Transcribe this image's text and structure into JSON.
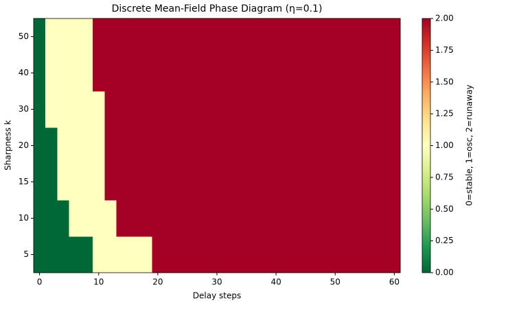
{
  "chart_data": {
    "type": "heatmap",
    "title": "Discrete Mean-Field Phase Diagram (η=0.1)",
    "x_label": "Delay steps",
    "y_label": "Sharpness k",
    "x": [
      0,
      2,
      4,
      6,
      8,
      10,
      12,
      14,
      16,
      18,
      20,
      22,
      24,
      26,
      28,
      30,
      32,
      34,
      36,
      38,
      40,
      42,
      44,
      46,
      48,
      50,
      52,
      54,
      56,
      58,
      60
    ],
    "categories": [
      "5",
      "10",
      "15",
      "20",
      "30",
      "40",
      "50"
    ],
    "z": [
      [
        0,
        0,
        0,
        0,
        0,
        1,
        1,
        1,
        1,
        1,
        2,
        2,
        2,
        2,
        2,
        2,
        2,
        2,
        2,
        2,
        2,
        2,
        2,
        2,
        2,
        2,
        2,
        2,
        2,
        2,
        2
      ],
      [
        0,
        0,
        0,
        1,
        1,
        1,
        1,
        2,
        2,
        2,
        2,
        2,
        2,
        2,
        2,
        2,
        2,
        2,
        2,
        2,
        2,
        2,
        2,
        2,
        2,
        2,
        2,
        2,
        2,
        2,
        2
      ],
      [
        0,
        0,
        1,
        1,
        1,
        1,
        2,
        2,
        2,
        2,
        2,
        2,
        2,
        2,
        2,
        2,
        2,
        2,
        2,
        2,
        2,
        2,
        2,
        2,
        2,
        2,
        2,
        2,
        2,
        2,
        2
      ],
      [
        0,
        0,
        1,
        1,
        1,
        1,
        2,
        2,
        2,
        2,
        2,
        2,
        2,
        2,
        2,
        2,
        2,
        2,
        2,
        2,
        2,
        2,
        2,
        2,
        2,
        2,
        2,
        2,
        2,
        2,
        2
      ],
      [
        0,
        1,
        1,
        1,
        1,
        1,
        2,
        2,
        2,
        2,
        2,
        2,
        2,
        2,
        2,
        2,
        2,
        2,
        2,
        2,
        2,
        2,
        2,
        2,
        2,
        2,
        2,
        2,
        2,
        2,
        2
      ],
      [
        0,
        1,
        1,
        1,
        1,
        2,
        2,
        2,
        2,
        2,
        2,
        2,
        2,
        2,
        2,
        2,
        2,
        2,
        2,
        2,
        2,
        2,
        2,
        2,
        2,
        2,
        2,
        2,
        2,
        2,
        2
      ],
      [
        0,
        1,
        1,
        1,
        1,
        2,
        2,
        2,
        2,
        2,
        2,
        2,
        2,
        2,
        2,
        2,
        2,
        2,
        2,
        2,
        2,
        2,
        2,
        2,
        2,
        2,
        2,
        2,
        2,
        2,
        2
      ]
    ],
    "xlim": [
      -1,
      61
    ],
    "xticks": [
      0,
      10,
      20,
      30,
      40,
      50,
      60
    ],
    "colormap": [
      "#006837",
      "#1a9850",
      "#66bd63",
      "#a6d96a",
      "#d9ef8b",
      "#ffffbf",
      "#fee08b",
      "#fdae61",
      "#f46d43",
      "#d73027",
      "#a50026"
    ],
    "colorbar_label": "0=stable, 1=osc, 2=runaway",
    "clim": [
      0,
      2
    ],
    "cticks": [
      {
        "value": 0,
        "label": "0.00"
      },
      {
        "value": 0.25,
        "label": "0.25"
      },
      {
        "value": 0.5,
        "label": "0.50"
      },
      {
        "value": 0.75,
        "label": "0.75"
      },
      {
        "value": 1,
        "label": "1.00"
      },
      {
        "value": 1.25,
        "label": "1.25"
      },
      {
        "value": 1.5,
        "label": "1.50"
      },
      {
        "value": 1.75,
        "label": "1.75"
      },
      {
        "value": 2,
        "label": "2.00"
      }
    ]
  }
}
